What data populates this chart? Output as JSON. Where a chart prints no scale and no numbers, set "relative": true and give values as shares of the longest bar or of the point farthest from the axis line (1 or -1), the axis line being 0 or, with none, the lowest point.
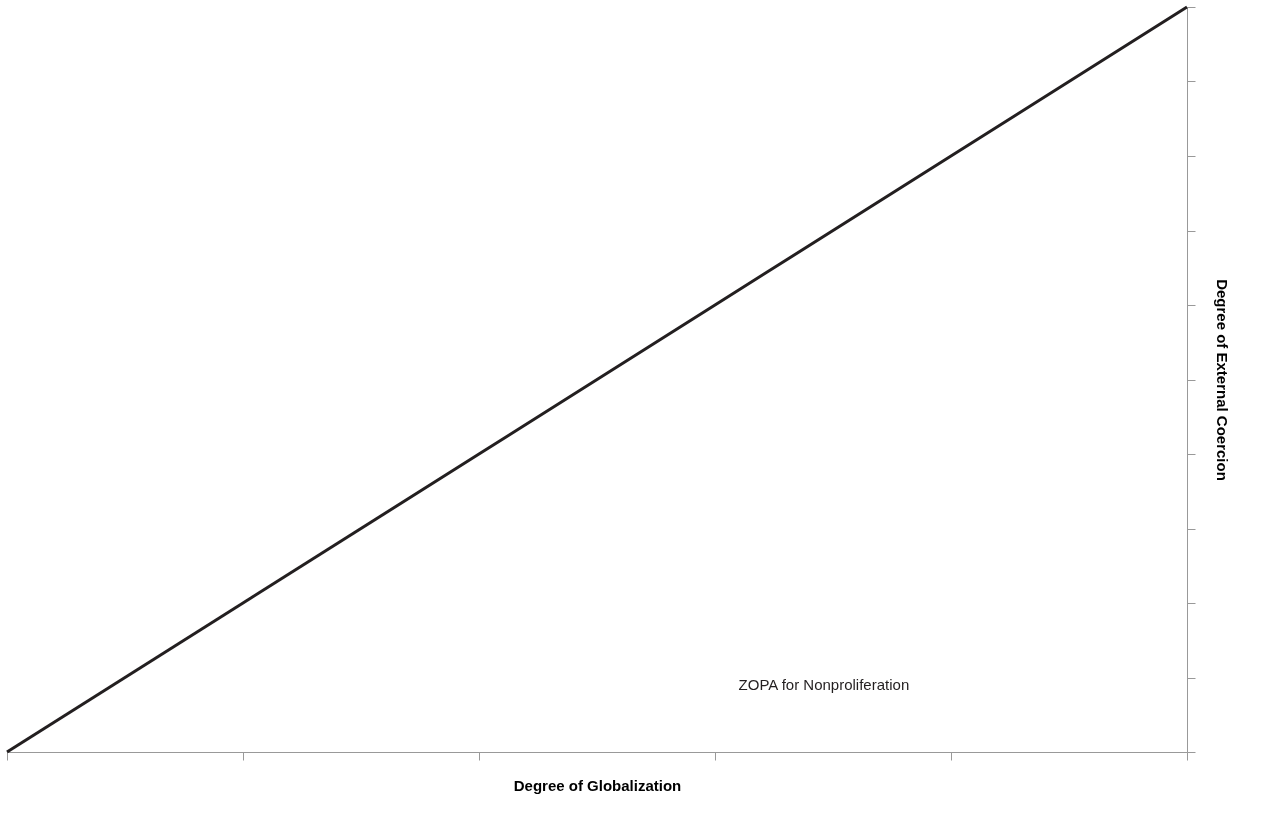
{
  "chart_data": {
    "type": "line",
    "relative": true,
    "xlabel": "Degree of Globalization",
    "ylabel": "Degree of External Coercion",
    "categories": [
      null,
      null,
      null,
      null,
      null,
      null
    ],
    "series": [
      {
        "color": "#231f20",
        "values": [
          0,
          0.2,
          0.4,
          0.6,
          0.8,
          1
        ]
      }
    ],
    "annotations": [
      "ZOPA for Nonproliferation"
    ],
    "grid": false,
    "marker": "none",
    "line_style": "solid"
  }
}
